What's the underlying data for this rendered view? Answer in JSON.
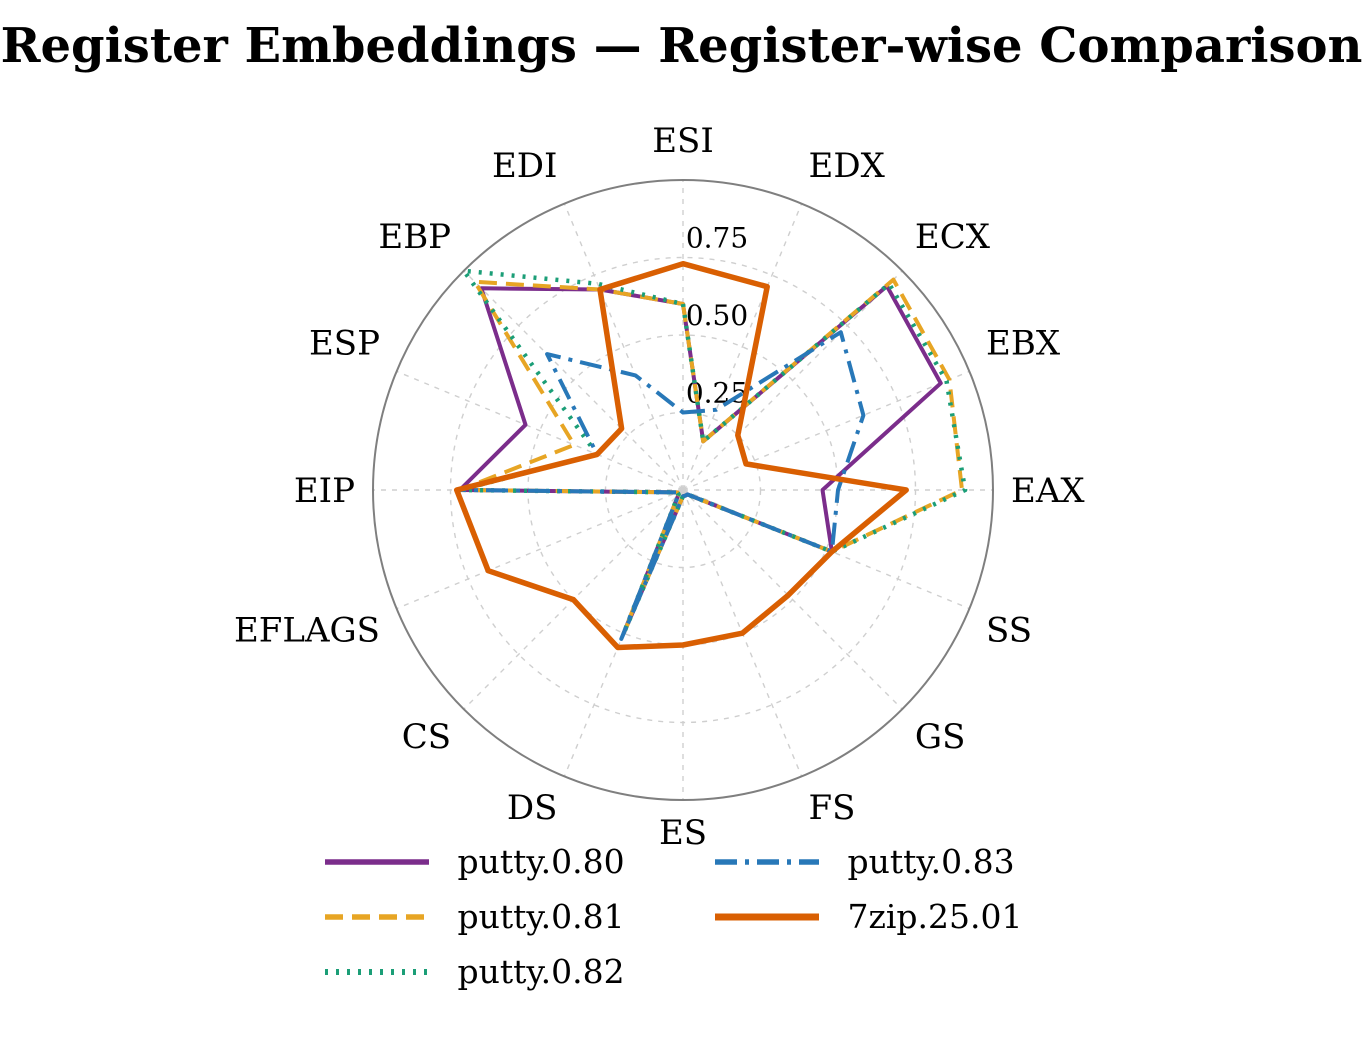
{
  "title": "Register Embeddings — Register-wise Comparison",
  "chart_data": {
    "type": "line",
    "subtype": "radar-polar",
    "title": "Register Embeddings — Register-wise Comparison",
    "categories": [
      "ESI",
      "EDX",
      "ECX",
      "EBX",
      "EAX",
      "SS",
      "GS",
      "FS",
      "ES",
      "DS",
      "CS",
      "EFLAGS",
      "EIP",
      "ESP",
      "EBP",
      "EDI"
    ],
    "category_order": "clockwise-from-top",
    "rlim": [
      0,
      1
    ],
    "grid": true,
    "grid_rings": [
      0.25,
      0.5,
      0.75
    ],
    "radial_ticks": [
      "0.25",
      "0.50",
      "0.75"
    ],
    "legend_position": "bottom",
    "legend_order": [
      0,
      3,
      1,
      4,
      2
    ],
    "series": [
      {
        "name": "putty.0.80",
        "color": "#7b2d8b",
        "style": "solid",
        "width": 4,
        "values": [
          0.6,
          0.17,
          0.93,
          0.9,
          0.45,
          0.52,
          0.02,
          0.02,
          0.02,
          0.5,
          0.02,
          0.02,
          0.72,
          0.55,
          0.92,
          0.7
        ]
      },
      {
        "name": "putty.0.81",
        "color": "#e7a524",
        "style": "dashed",
        "width": 4,
        "values": [
          0.6,
          0.17,
          0.96,
          0.93,
          0.9,
          0.52,
          0.02,
          0.02,
          0.02,
          0.5,
          0.02,
          0.02,
          0.72,
          0.38,
          0.95,
          0.7
        ]
      },
      {
        "name": "putty.0.82",
        "color": "#1b9e77",
        "style": "dotted",
        "width": 4.5,
        "values": [
          0.6,
          0.17,
          0.94,
          0.92,
          0.91,
          0.52,
          0.02,
          0.02,
          0.02,
          0.5,
          0.02,
          0.02,
          0.72,
          0.3,
          1.0,
          0.72
        ]
      },
      {
        "name": "putty.0.83",
        "color": "#2878b8",
        "style": "dashdot",
        "width": 4,
        "values": [
          0.25,
          0.28,
          0.72,
          0.63,
          0.5,
          0.52,
          0.02,
          0.02,
          0.02,
          0.52,
          0.02,
          0.02,
          0.72,
          0.3,
          0.62,
          0.4
        ]
      },
      {
        "name": "7zip.25.01",
        "color": "#d95f02",
        "style": "solid",
        "width": 5.5,
        "values": [
          0.73,
          0.71,
          0.25,
          0.22,
          0.72,
          0.52,
          0.48,
          0.5,
          0.5,
          0.55,
          0.5,
          0.68,
          0.73,
          0.3,
          0.28,
          0.7
        ]
      }
    ]
  }
}
